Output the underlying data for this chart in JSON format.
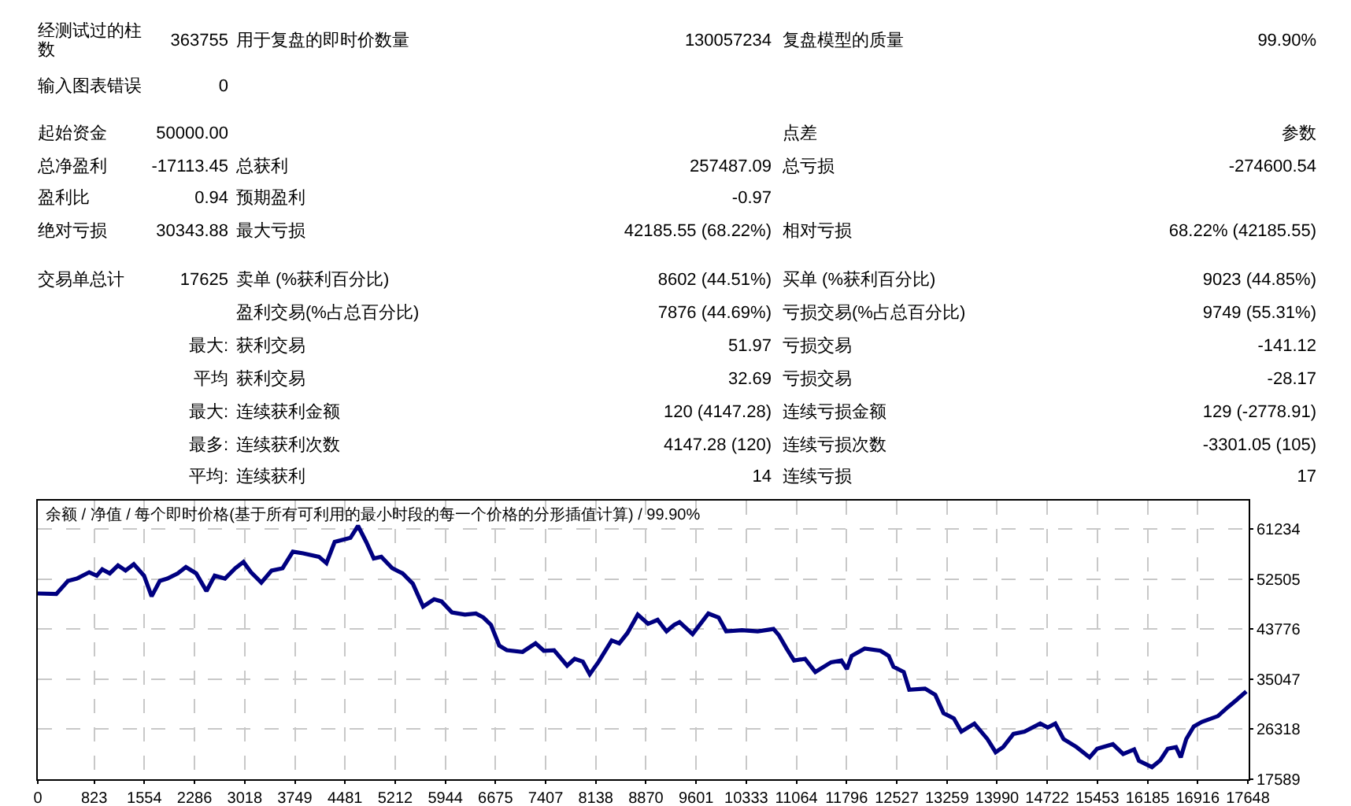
{
  "chart_data": [
    {
      "type": "other",
      "annotations": [
        "经测试过的柱数",
        "363755",
        "用于复盘的即时价数量",
        "130057234",
        "复盘模型的质量",
        "99.90%",
        "输入图表错误",
        "0",
        "起始资金",
        "50000.00",
        "点差",
        "参数",
        "总净盈利",
        "-17113.45",
        "总获利",
        "257487.09",
        "总亏损",
        "-274600.54",
        "盈利比",
        "0.94",
        "预期盈利",
        "-0.97",
        "绝对亏损",
        "30343.88",
        "最大亏损",
        "42185.55 (68.22%)",
        "相对亏损",
        "68.22% (42185.55)",
        "交易单总计",
        "17625",
        "卖单 (%获利百分比)",
        "8602 (44.51%)",
        "买单 (%获利百分比)",
        "9023 (44.85%)",
        "盈利交易(%占总百分比)",
        "7876 (44.69%)",
        "亏损交易(%占总百分比)",
        "9749 (55.31%)",
        "最大:",
        "获利交易",
        "51.97",
        "亏损交易",
        "-141.12",
        "平均",
        "获利交易",
        "32.69",
        "亏损交易",
        "-28.17",
        "最大:",
        "连续获利金额",
        "120 (4147.28)",
        "连续亏损金额",
        "129 (-2778.91)",
        "最多:",
        "连续获利次数",
        "4147.28 (120)",
        "连续亏损次数",
        "-3301.05 (105)",
        "平均:",
        "连续获利",
        "14",
        "连续亏损",
        "17"
      ]
    },
    {
      "type": "line",
      "title": "余额 / 净值 / 每个即时价格(基于所有可利用的最小时段的每一个价格的分形插值计算) / 99.90%",
      "x": [
        0,
        270,
        440,
        570,
        750,
        860,
        940,
        1050,
        1170,
        1280,
        1400,
        1550,
        1660,
        1780,
        1890,
        2040,
        2160,
        2310,
        2460,
        2580,
        2730,
        2880,
        3000,
        3110,
        3260,
        3410,
        3570,
        3720,
        3870,
        4100,
        4210,
        4330,
        4560,
        4670,
        4790,
        4900,
        5010,
        5170,
        5320,
        5470,
        5620,
        5780,
        5890,
        6040,
        6230,
        6390,
        6500,
        6610,
        6730,
        6840,
        7070,
        7260,
        7380,
        7530,
        7720,
        7830,
        7950,
        8050,
        8180,
        8370,
        8480,
        8600,
        8750,
        8900,
        9040,
        9170,
        9280,
        9360,
        9550,
        9780,
        9930,
        10040,
        10270,
        10500,
        10730,
        10810,
        10920,
        11030,
        11190,
        11340,
        11570,
        11720,
        11800,
        11870,
        12060,
        12290,
        12410,
        12480,
        12630,
        12710,
        12940,
        13090,
        13210,
        13360,
        13470,
        13660,
        13850,
        13970,
        14080,
        14230,
        14390,
        14620,
        14730,
        14840,
        14960,
        15150,
        15340,
        15450,
        15680,
        15830,
        15990,
        16060,
        16250,
        16370,
        16480,
        16600,
        16670,
        16750,
        16860,
        16980,
        17210,
        17360,
        17470,
        17625
      ],
      "series": [
        {
          "color": "#000080",
          "values": [
            50000,
            49900,
            52200,
            52600,
            53700,
            53100,
            54200,
            53500,
            54900,
            54000,
            55100,
            53100,
            49500,
            52200,
            52600,
            53500,
            54600,
            53500,
            50400,
            53100,
            52600,
            54400,
            55500,
            53700,
            51900,
            54000,
            54400,
            57300,
            57000,
            56400,
            55300,
            59000,
            59700,
            61800,
            59000,
            56100,
            56400,
            54400,
            53500,
            51700,
            47700,
            49000,
            48600,
            46700,
            46300,
            46500,
            45800,
            44500,
            40900,
            40100,
            39800,
            41300,
            40000,
            40100,
            37400,
            38600,
            38100,
            35900,
            38100,
            41800,
            41300,
            43100,
            46300,
            44700,
            45400,
            43400,
            44500,
            45000,
            42900,
            46500,
            45800,
            43400,
            43600,
            43400,
            43800,
            42700,
            40400,
            38300,
            38600,
            36300,
            38000,
            38300,
            36800,
            39100,
            40400,
            40000,
            39100,
            37200,
            36300,
            33200,
            33400,
            32300,
            29100,
            28200,
            25900,
            27300,
            24600,
            22300,
            23200,
            25500,
            25900,
            27300,
            26600,
            27300,
            24600,
            23200,
            21400,
            22900,
            23700,
            22000,
            22800,
            20800,
            19700,
            20900,
            22900,
            23200,
            21400,
            24600,
            26800,
            27600,
            28600,
            30200,
            31300,
            32900
          ]
        }
      ],
      "xlim": [
        0,
        17660
      ],
      "xticks": [
        0,
        823,
        1554,
        2286,
        3018,
        3749,
        4481,
        5212,
        5944,
        6675,
        7407,
        8138,
        8870,
        9601,
        10333,
        11064,
        11796,
        12527,
        13259,
        13990,
        14722,
        15453,
        16185,
        16916,
        17648
      ],
      "ylim": [
        17589,
        66200
      ],
      "yticks": [
        17589,
        26318,
        35047,
        43776,
        52505,
        61234
      ],
      "grid": true
    }
  ]
}
